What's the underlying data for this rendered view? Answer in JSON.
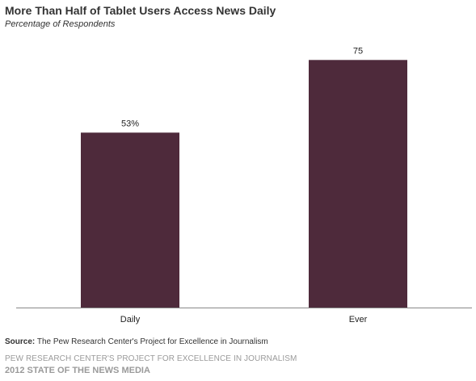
{
  "header": {
    "title": "More Than Half of Tablet Users Access  News Daily",
    "subtitle": "Percentage of Respondents"
  },
  "chart_data": {
    "type": "bar",
    "categories": [
      "Daily",
      "Ever"
    ],
    "values": [
      53,
      75
    ],
    "data_labels": [
      "53%",
      "75"
    ],
    "ylim": [
      0,
      90
    ],
    "grid": false,
    "legend": "none",
    "bar_color": "#4e2a3b",
    "axis_color": "#888888"
  },
  "footer": {
    "source_label": "Source:",
    "source_text": " The Pew Research Center's Project for Excellence in Journalism",
    "org": "PEW RESEARCH CENTER'S PROJECT FOR EXCELLENCE IN JOURNALISM",
    "report": "2012 STATE OF THE NEWS MEDIA"
  }
}
